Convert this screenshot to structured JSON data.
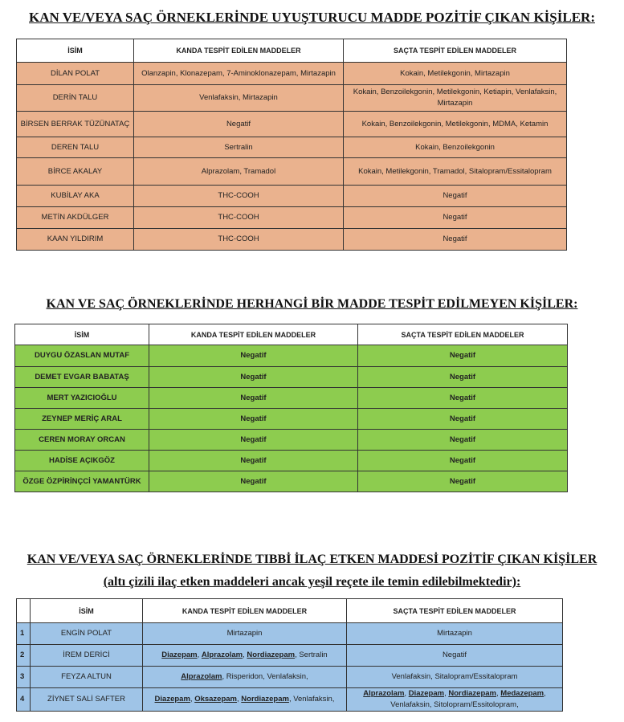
{
  "section1": {
    "title": "KAN VE/VEYA SAÇ ÖRNEKLERİNDE UYUŞTURUCU MADDE POZİTİF ÇIKAN KİŞİLER:",
    "headers": [
      "İSİM",
      "KANDA TESPİT EDİLEN MADDELER",
      "SAÇTA TESPİT EDİLEN MADDELER"
    ],
    "rows": [
      [
        "DİLAN POLAT",
        "Olanzapin, Klonazepam, 7-Aminoklonazepam, Mirtazapin",
        "Kokain, Metilekgonin, Mirtazapin"
      ],
      [
        "DERİN TALU",
        "Venlafaksin, Mirtazapin",
        "Kokain, Benzoilekgonin, Metilekgonin, Ketiapin, Venlafaksin, Mirtazapin"
      ],
      [
        "BİRSEN BERRAK TÜZÜNATAÇ",
        "Negatif",
        "Kokain, Benzoilekgonin, Metilekgonin, MDMA, Ketamin"
      ],
      [
        "DEREN TALU",
        "Sertralin",
        "Kokain, Benzoilekgonin"
      ],
      [
        "BİRCE AKALAY",
        "Alprazolam, Tramadol",
        "Kokain, Metilekgonin, Tramadol, Sitalopram/Essitalopram"
      ],
      [
        "KUBİLAY AKA",
        "THC-COOH",
        "Negatif"
      ],
      [
        "METİN AKDÜLGER",
        "THC-COOH",
        "Negatif"
      ],
      [
        "KAAN YILDIRIM",
        "THC-COOH",
        "Negatif"
      ]
    ]
  },
  "section2": {
    "title": "KAN VE SAÇ ÖRNEKLERİNDE HERHANGİ BİR MADDE TESPİT EDİLMEYEN KİŞİLER:",
    "headers": [
      "İSİM",
      "KANDA TESPİT EDİLEN MADDELER",
      "SAÇTA TESPİT EDİLEN MADDELER"
    ],
    "rows": [
      [
        "DUYGU ÖZASLAN MUTAF",
        "Negatif",
        "Negatif"
      ],
      [
        "DEMET EVGAR BABATAŞ",
        "Negatif",
        "Negatif"
      ],
      [
        "MERT YAZICIOĞLU",
        "Negatif",
        "Negatif"
      ],
      [
        "ZEYNEP MERİÇ ARAL",
        "Negatif",
        "Negatif"
      ],
      [
        "CEREN MORAY ORCAN",
        "Negatif",
        "Negatif"
      ],
      [
        "HADİSE AÇIKGÖZ",
        "Negatif",
        "Negatif"
      ],
      [
        "ÖZGE ÖZPİRİNÇCİ YAMANTÜRK",
        "Negatif",
        "Negatif"
      ]
    ]
  },
  "section3": {
    "title": "KAN VE/VEYA SAÇ ÖRNEKLERİNDE TIBBİ İLAÇ ETKEN MADDESİ POZİTİF ÇIKAN KİŞİLER",
    "subtitle": "(altı çizili ilaç etken maddeleri ancak yeşil reçete ile temin edilebilmektedir):",
    "headers": [
      "",
      "İSİM",
      "KANDA TESPİT EDİLEN MADDELER",
      "SAÇTA TESPİT EDİLEN MADDELER"
    ],
    "rows": [
      {
        "num": "1",
        "name": "ENGİN POLAT",
        "kanda": [
          {
            "t": "Mirtazapin"
          }
        ],
        "sacta": [
          {
            "t": "Mirtazapin"
          }
        ]
      },
      {
        "num": "2",
        "name": "İREM DERİCİ",
        "kanda": [
          {
            "t": "Diazepam",
            "u": true
          },
          {
            "t": ", "
          },
          {
            "t": "Alprazolam",
            "u": true
          },
          {
            "t": ", "
          },
          {
            "t": "Nordiazepam",
            "u": true
          },
          {
            "t": ", Sertralin"
          }
        ],
        "sacta": [
          {
            "t": "Negatif"
          }
        ]
      },
      {
        "num": "3",
        "name": "FEYZA ALTUN",
        "kanda": [
          {
            "t": "Alprazolam",
            "u": true
          },
          {
            "t": ", Risperidon, Venlafaksin,"
          }
        ],
        "sacta": [
          {
            "t": "Venlafaksin, Sitalopram/Essitalopram"
          }
        ]
      },
      {
        "num": "4",
        "name": "ZİYNET SALİ SAFTER",
        "kanda": [
          {
            "t": "Diazepam",
            "u": true
          },
          {
            "t": ", "
          },
          {
            "t": "Oksazepam",
            "u": true
          },
          {
            "t": ", "
          },
          {
            "t": "Nordiazepam",
            "u": true
          },
          {
            "t": ", Venlafaksin,"
          }
        ],
        "sacta": [
          {
            "t": "Alprazolam",
            "u": true
          },
          {
            "t": ", "
          },
          {
            "t": "Diazepam",
            "u": true
          },
          {
            "t": ", "
          },
          {
            "t": "Nordiazepam",
            "u": true
          },
          {
            "t": ", "
          },
          {
            "t": "Medazepam",
            "u": true
          },
          {
            "t": ", Venlafaksin, Sitolopram/Essitolopram,"
          }
        ]
      }
    ]
  }
}
